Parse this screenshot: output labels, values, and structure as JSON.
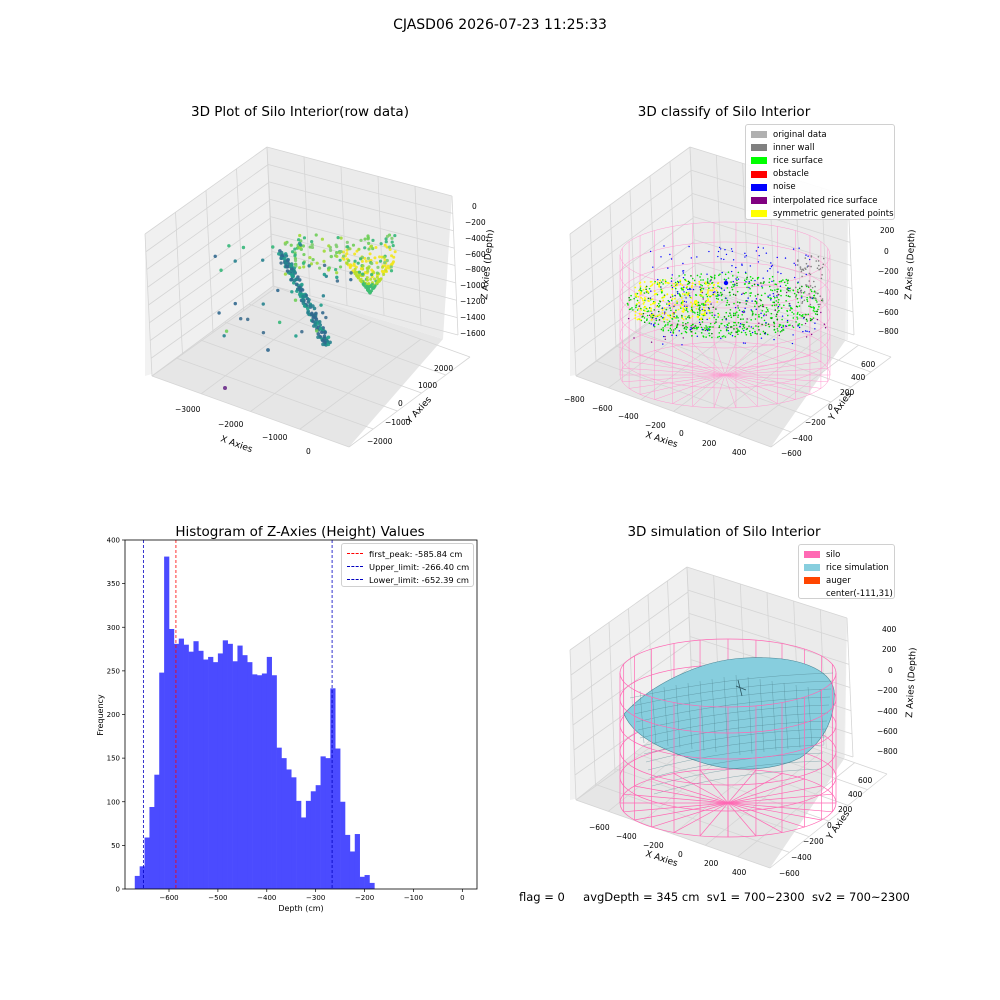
{
  "figure": {
    "suptitle": "CJASD06 2026-07-23 11:25:33",
    "status": {
      "flag": "flag = 0",
      "avg_depth": "avgDepth = 345 cm",
      "sv1": "sv1 = 700~2300",
      "sv2": "sv2 = 700~2300"
    }
  },
  "colors": {
    "histogram_bar": "#4b4bff",
    "first_peak": "#ff0000",
    "limit_lines": "#0000c0",
    "silo_wire": "#ff69b4",
    "rice_sim": "#87cede",
    "auger": "#ff4500",
    "original_data": "#b0b0b0",
    "inner_wall": "#808080",
    "rice_surface": "#00ff00",
    "obstacle": "#ff0000",
    "noise": "#0000ff",
    "interpolated_rice_surface": "#800080",
    "symmetric_generated_points": "#ffff00"
  },
  "chart_data": [
    {
      "type": "scatter",
      "title": "3D Plot of Silo Interior(row data)",
      "xlabel": "X Axies",
      "ylabel": "Y Axies",
      "zlabel": "Z Axies (Depth)",
      "x_ticks": [
        "−3000",
        "−2000",
        "−1000",
        "0"
      ],
      "y_ticks": [
        "−2000",
        "−1000",
        "0",
        "1000",
        "2000"
      ],
      "z_ticks": [
        "0",
        "−200",
        "−400",
        "−600",
        "−800",
        "−1000",
        "−1200",
        "−1400",
        "−1600"
      ]
    },
    {
      "type": "scatter",
      "title": "3D classify of Silo Interior",
      "xlabel": "X Axies",
      "ylabel": "Y Axies",
      "zlabel": "Z Axies (Depth)",
      "x_ticks": [
        "−800",
        "−600",
        "−400",
        "−200",
        "0",
        "200",
        "400"
      ],
      "y_ticks": [
        "−600",
        "−400",
        "−200",
        "0",
        "200",
        "400",
        "600"
      ],
      "z_ticks": [
        "200",
        "0",
        "−200",
        "−400",
        "−600",
        "−800"
      ],
      "legend": [
        {
          "label": "original data",
          "color": "#b0b0b0"
        },
        {
          "label": "inner wall",
          "color": "#808080"
        },
        {
          "label": "rice surface",
          "color": "#00ff00"
        },
        {
          "label": "obstacle",
          "color": "#ff0000"
        },
        {
          "label": "noise",
          "color": "#0000ff"
        },
        {
          "label": "interpolated rice surface",
          "color": "#800080"
        },
        {
          "label": "symmetric generated points",
          "color": "#ffff00"
        }
      ]
    },
    {
      "type": "bar",
      "title": "Histogram of Z-Axies (Height) Values",
      "xlabel": "Depth (cm)",
      "ylabel": "Frequency",
      "xlim": [
        -690,
        30
      ],
      "ylim": [
        0,
        400
      ],
      "x_ticks": [
        -600,
        -500,
        -400,
        -300,
        -200,
        -100,
        0
      ],
      "x_tick_labels": [
        "−600",
        "−500",
        "−400",
        "−300",
        "−200",
        "−100",
        "0"
      ],
      "y_ticks": [
        0,
        50,
        100,
        150,
        200,
        250,
        300,
        350,
        400
      ],
      "bin_start": -670,
      "bin_width": 10,
      "values": [
        15,
        26,
        59,
        94,
        131,
        248,
        381,
        298,
        281,
        287,
        280,
        272,
        284,
        273,
        263,
        266,
        260,
        270,
        285,
        281,
        261,
        279,
        268,
        260,
        246,
        245,
        247,
        266,
        245,
        162,
        150,
        137,
        128,
        101,
        82,
        101,
        112,
        119,
        152,
        150,
        230,
        161,
        100,
        62,
        43,
        63,
        14,
        16,
        7
      ],
      "lines": [
        {
          "label": "first_peak: -585.84 cm",
          "x": -585.84,
          "color": "#ff0000"
        },
        {
          "label": "Upper_limit: -266.40 cm",
          "x": -266.4,
          "color": "#0000c0"
        },
        {
          "label": "Lower_limit: -652.39 cm",
          "x": -652.39,
          "color": "#0000c0"
        }
      ]
    },
    {
      "type": "surface",
      "title": "3D simulation of Silo Interior",
      "xlabel": "X Axies",
      "ylabel": "Y Axies",
      "zlabel": "Z Axies (Depth)",
      "x_ticks": [
        "−600",
        "−400",
        "−200",
        "0",
        "200",
        "400"
      ],
      "y_ticks": [
        "−600",
        "−400",
        "−200",
        "0",
        "200",
        "400",
        "600"
      ],
      "z_ticks": [
        "400",
        "200",
        "0",
        "−200",
        "−400",
        "−600",
        "−800"
      ],
      "legend": [
        {
          "label": "silo",
          "color": "#ff69b4"
        },
        {
          "label": "rice simulation",
          "color": "#87cede"
        },
        {
          "label": "auger",
          "color": "#ff4500"
        },
        {
          "label": "center(-111,31)",
          "color": ""
        }
      ]
    }
  ]
}
